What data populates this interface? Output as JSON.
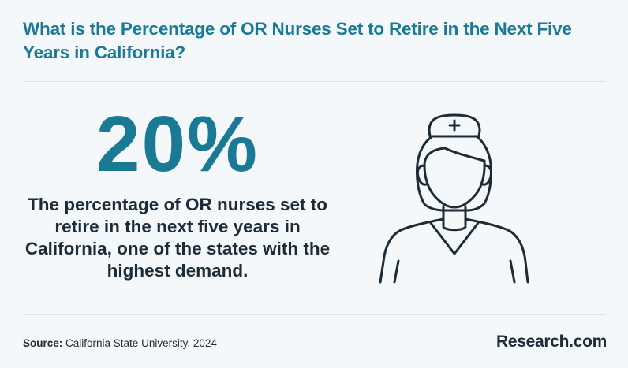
{
  "header": {
    "title": "What is the Percentage of OR Nurses Set to Retire in the Next Five Years in California?"
  },
  "stat": {
    "value": "20%",
    "description": "The percentage of OR nurses set to retire in the next five years in California, one of the states with the highest demand."
  },
  "illustration": {
    "icon": "nurse-icon",
    "stroke_color": "#1d2b36"
  },
  "footer": {
    "source_label": "Source:",
    "source_text": " California State University, 2024",
    "logo": "Research.com"
  },
  "colors": {
    "accent": "#1a7a95",
    "text": "#1d2b36",
    "background": "#f5f8fa"
  }
}
